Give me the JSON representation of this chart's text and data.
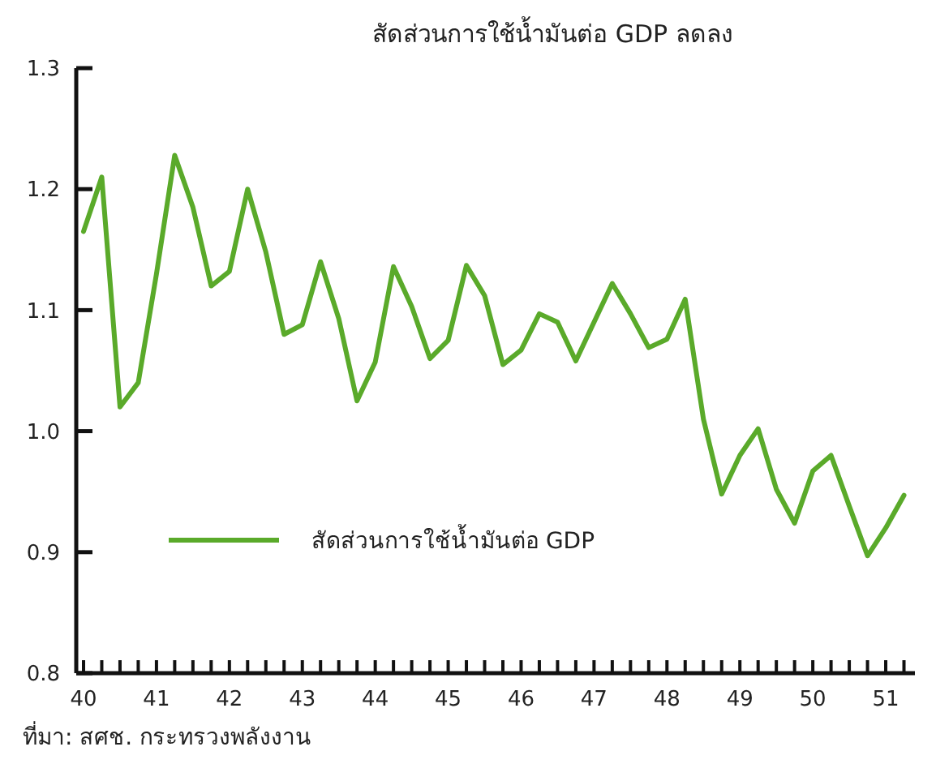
{
  "chart_data": {
    "type": "line",
    "title": "สัดส่วนการใช้น้ำมันต่อ GDP ลดลง",
    "x": [
      40,
      40.25,
      40.5,
      40.75,
      41,
      41.25,
      41.5,
      41.75,
      42,
      42.25,
      42.5,
      42.75,
      43,
      43.25,
      43.5,
      43.75,
      44,
      44.25,
      44.5,
      44.75,
      45,
      45.25,
      45.5,
      45.75,
      46,
      46.25,
      46.5,
      46.75,
      47,
      47.25,
      47.5,
      47.75,
      48,
      48.25,
      48.5,
      48.75,
      49,
      49.25,
      49.5,
      49.75,
      50,
      50.25,
      50.5,
      50.75,
      51,
      51.25
    ],
    "series": [
      {
        "name": "สัดส่วนการใช้น้ำมันต่อ GDP",
        "color": "#5aaa2a",
        "values": [
          1.165,
          1.21,
          1.02,
          1.04,
          1.13,
          1.228,
          1.185,
          1.12,
          1.132,
          1.2,
          1.148,
          1.08,
          1.088,
          1.14,
          1.093,
          1.025,
          1.057,
          1.136,
          1.103,
          1.06,
          1.075,
          1.137,
          1.112,
          1.055,
          1.067,
          1.097,
          1.09,
          1.058,
          1.09,
          1.122,
          1.097,
          1.069,
          1.076,
          1.109,
          1.01,
          0.948,
          0.98,
          1.002,
          0.952,
          0.924,
          0.967,
          0.98,
          0.938,
          0.897,
          0.92,
          0.947
        ]
      }
    ],
    "xlim": [
      39.9,
      51.4
    ],
    "xticks": [
      40,
      {
        "value": 40.25,
        "label": null
      },
      {
        "value": 40.5,
        "label": null
      },
      {
        "value": 40.75,
        "label": null
      },
      41,
      {
        "value": 41.25,
        "label": null
      },
      {
        "value": 41.5,
        "label": null
      },
      {
        "value": 41.75,
        "label": null
      },
      42,
      {
        "value": 42.25,
        "label": null
      },
      {
        "value": 42.5,
        "label": null
      },
      {
        "value": 42.75,
        "label": null
      },
      43,
      {
        "value": 43.25,
        "label": null
      },
      {
        "value": 43.5,
        "label": null
      },
      {
        "value": 43.75,
        "label": null
      },
      44,
      {
        "value": 44.25,
        "label": null
      },
      {
        "value": 44.5,
        "label": null
      },
      {
        "value": 44.75,
        "label": null
      },
      45,
      {
        "value": 45.25,
        "label": null
      },
      {
        "value": 45.5,
        "label": null
      },
      {
        "value": 45.75,
        "label": null
      },
      46,
      {
        "value": 46.25,
        "label": null
      },
      {
        "value": 46.5,
        "label": null
      },
      {
        "value": 46.75,
        "label": null
      },
      47,
      {
        "value": 47.25,
        "label": null
      },
      {
        "value": 47.5,
        "label": null
      },
      {
        "value": 47.75,
        "label": null
      },
      48,
      {
        "value": 48.25,
        "label": null
      },
      {
        "value": 48.5,
        "label": null
      },
      {
        "value": 48.75,
        "label": null
      },
      49,
      {
        "value": 49.25,
        "label": null
      },
      {
        "value": 49.5,
        "label": null
      },
      {
        "value": 49.75,
        "label": null
      },
      50,
      {
        "value": 50.25,
        "label": null
      },
      {
        "value": 50.5,
        "label": null
      },
      {
        "value": 50.75,
        "label": null
      },
      51,
      {
        "value": 51.25,
        "label": null
      }
    ],
    "ylim": [
      0.8,
      1.3
    ],
    "yticks": [
      0.8,
      0.9,
      {
        "value": 1,
        "label": "1.0"
      },
      1.1,
      1.2,
      1.3
    ],
    "legend": "left",
    "grid": false,
    "marker": "none",
    "line_style": "solid",
    "annotations": [
      "ที่มา: สศช. กระทรวงพลังงาน"
    ]
  }
}
